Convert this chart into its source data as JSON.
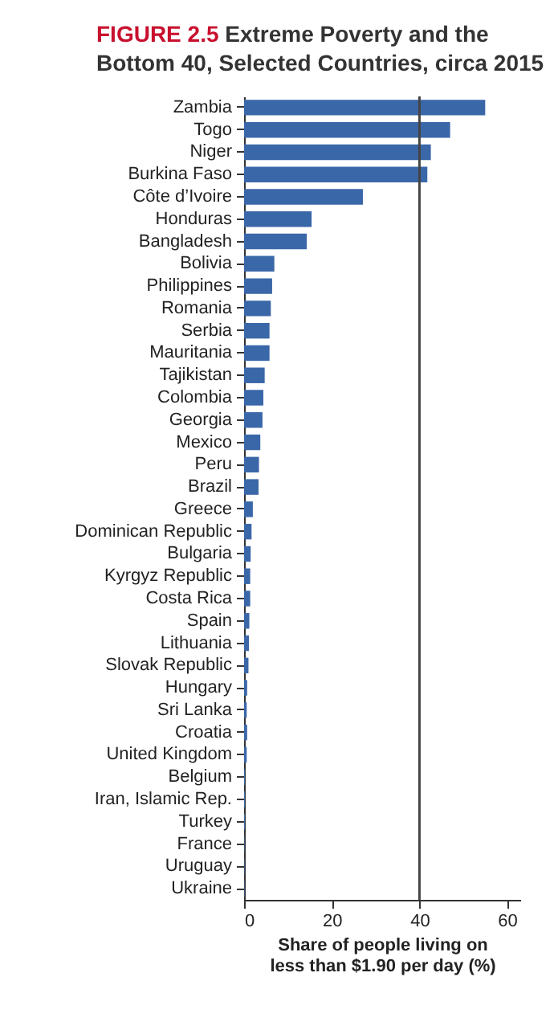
{
  "chart_data": {
    "type": "bar",
    "orientation": "horizontal",
    "title": "FIGURE 2.5  Extreme Poverty and the Bottom 40, Selected Countries, circa 2015",
    "xlabel": "Share of people living on less than $1.90 per day (%)",
    "categories": [
      "Zambia",
      "Togo",
      "Niger",
      "Burkina Faso",
      "Côte d’Ivoire",
      "Honduras",
      "Bangladesh",
      "Bolivia",
      "Philippines",
      "Romania",
      "Serbia",
      "Mauritania",
      "Tajikistan",
      "Colombia",
      "Georgia",
      "Mexico",
      "Peru",
      "Brazil",
      "Greece",
      "Dominican Republic",
      "Bulgaria",
      "Kyrgyz Republic",
      "Costa Rica",
      "Spain",
      "Lithuania",
      "Slovak Republic",
      "Hungary",
      "Sri Lanka",
      "Croatia",
      "United Kingdom",
      "Belgium",
      "Iran, Islamic Rep.",
      "Turkey",
      "France",
      "Uruguay",
      "Ukraine"
    ],
    "values": [
      55.0,
      47.0,
      42.6,
      41.8,
      27.1,
      15.4,
      14.3,
      6.9,
      6.4,
      6.1,
      5.8,
      5.8,
      4.7,
      4.4,
      4.2,
      3.7,
      3.4,
      3.3,
      2.0,
      1.7,
      1.5,
      1.4,
      1.4,
      1.2,
      1.1,
      1.0,
      0.7,
      0.6,
      0.7,
      0.6,
      0.2,
      0.2,
      0.2,
      0.1,
      0.1,
      0.1
    ],
    "color": "#3a67a8",
    "xlim": [
      0,
      63
    ],
    "xticks": [
      0,
      20,
      40,
      60
    ],
    "grid": false,
    "ref_lines": [
      {
        "axis": "x",
        "value": 40,
        "color": "#444444"
      }
    ]
  }
}
